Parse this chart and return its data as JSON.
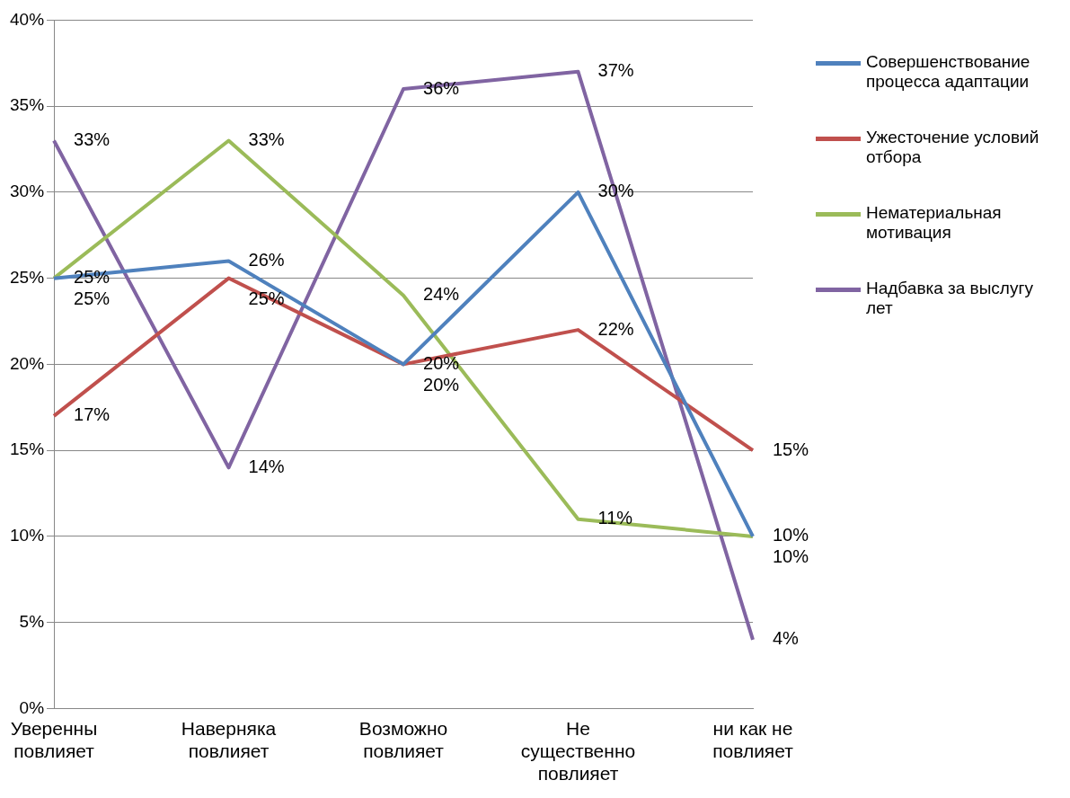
{
  "chart_data": {
    "type": "line",
    "categories": [
      "Уверенны повлияет",
      "Наверняка повлияет",
      "Возможно повлияет",
      "Не существенно повлияет",
      "ни как не повлияет"
    ],
    "series": [
      {
        "name": "Совершенствование процесса адаптации",
        "color": "#4f81bd",
        "values": [
          25,
          26,
          20,
          30,
          10
        ],
        "value_labels": [
          "25%",
          "26%",
          "20%",
          "30%",
          "10%"
        ]
      },
      {
        "name": "Ужесточение условий отбора",
        "color": "#c0504d",
        "values": [
          17,
          25,
          20,
          22,
          15
        ],
        "value_labels": [
          "17%",
          "25%",
          "20%",
          "22%",
          "15%"
        ]
      },
      {
        "name": "Нематериальная мотивация",
        "color": "#9bbb59",
        "values": [
          25,
          33,
          24,
          11,
          10
        ],
        "value_labels": [
          "25%",
          "33%",
          "24%",
          "11%",
          "10%"
        ]
      },
      {
        "name": "Надбавка за выслугу лет",
        "color": "#8064a2",
        "values": [
          33,
          14,
          36,
          37,
          4
        ],
        "value_labels": [
          "33%",
          "14%",
          "36%",
          "37%",
          "4%"
        ]
      }
    ],
    "ylim": [
      0,
      40
    ],
    "yticks": [
      {
        "value": 0,
        "label": "0%"
      },
      {
        "value": 5,
        "label": "5%"
      },
      {
        "value": 10,
        "label": "10%"
      },
      {
        "value": 15,
        "label": "15%"
      },
      {
        "value": 20,
        "label": "20%"
      },
      {
        "value": 25,
        "label": "25%"
      },
      {
        "value": 30,
        "label": "30%"
      },
      {
        "value": 35,
        "label": "35%"
      },
      {
        "value": 40,
        "label": "40%"
      }
    ],
    "grid": "y",
    "legend": "right",
    "marker": "none",
    "line_style": "solid"
  }
}
